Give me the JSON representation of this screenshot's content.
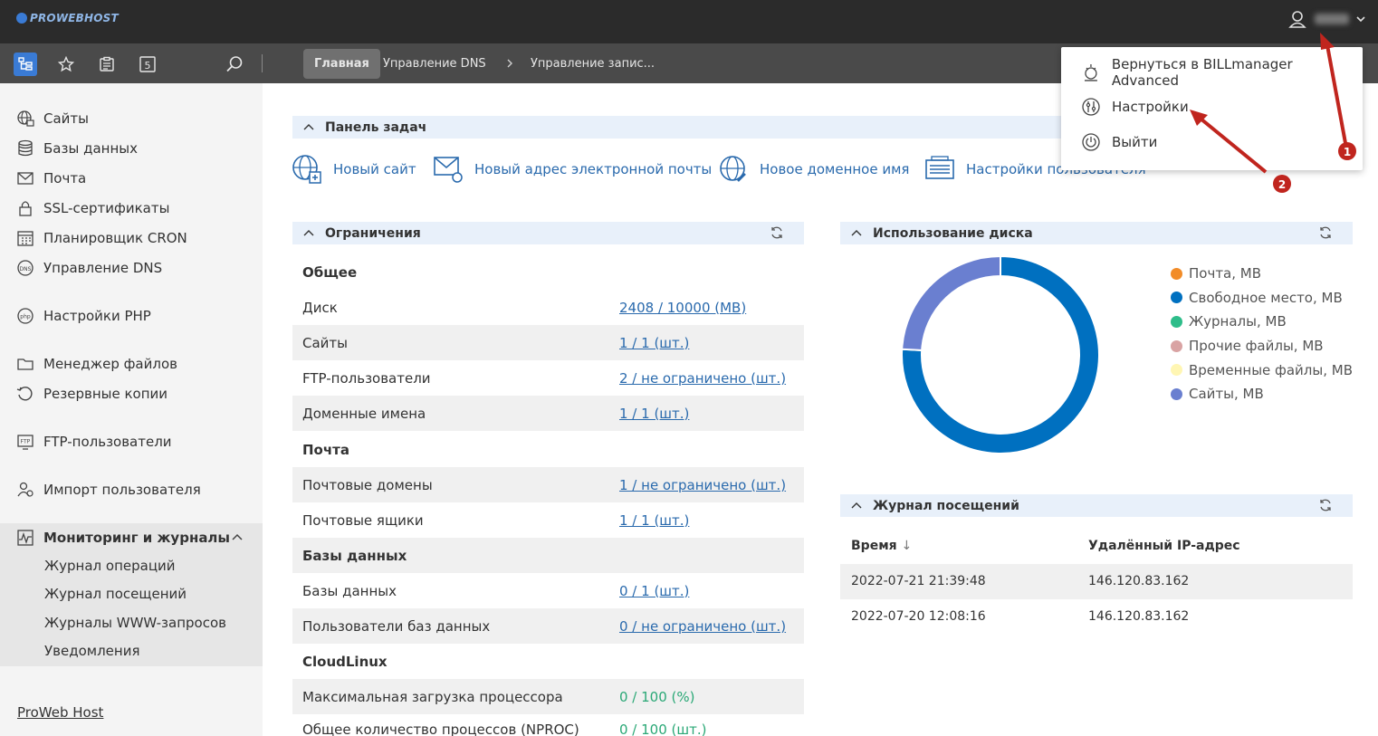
{
  "brand": {
    "logo": "PROWEBHOST"
  },
  "toolbar": {
    "breadcrumbs": [
      {
        "label": "Главная"
      },
      {
        "label": "Управление DNS"
      },
      {
        "label": "Управление запис..."
      }
    ],
    "calendar_badge": "5"
  },
  "sidebar": {
    "items": [
      {
        "label": "Сайты",
        "icon": "globe-icon"
      },
      {
        "label": "Базы данных",
        "icon": "database-icon"
      },
      {
        "label": "Почта",
        "icon": "mail-icon"
      },
      {
        "label": "SSL-сертификаты",
        "icon": "lock-icon"
      },
      {
        "label": "Планировщик CRON",
        "icon": "calendar-icon"
      },
      {
        "label": "Управление DNS",
        "icon": "dns-icon"
      },
      {
        "label": "Настройки PHP",
        "icon": "php-icon"
      },
      {
        "label": "Менеджер файлов",
        "icon": "folder-icon"
      },
      {
        "label": "Резервные копии",
        "icon": "backup-icon"
      },
      {
        "label": "FTP-пользователи",
        "icon": "ftp-icon"
      },
      {
        "label": "Импорт пользователя",
        "icon": "import-user-icon"
      },
      {
        "label": "Мониторинг и журналы",
        "icon": "monitoring-icon"
      }
    ],
    "sub_items": [
      {
        "label": "Журнал операций"
      },
      {
        "label": "Журнал посещений"
      },
      {
        "label": "Журналы WWW-запросов"
      },
      {
        "label": "Уведомления"
      }
    ],
    "footer": "ProWeb Host"
  },
  "tasks": {
    "title": "Панель задач",
    "links": [
      {
        "label": "Новый сайт"
      },
      {
        "label": "Новый адрес электронной почты"
      },
      {
        "label": "Новое доменное имя"
      },
      {
        "label": "Настройки пользователя"
      }
    ]
  },
  "limits": {
    "title": "Ограничения",
    "rows": [
      {
        "label": "Общее",
        "value": ""
      },
      {
        "label": "Диск",
        "value": "2408 / 10000 (MB)"
      },
      {
        "label": "Сайты",
        "value": "1 / 1 (шт.)"
      },
      {
        "label": "FTP-пользователи",
        "value": "2 / не ограничено (шт.)"
      },
      {
        "label": "Доменные имена",
        "value": "1 / 1 (шт.)"
      },
      {
        "label": "Почта",
        "value": ""
      },
      {
        "label": "Почтовые домены",
        "value": "1 / не ограничено (шт.)"
      },
      {
        "label": "Почтовые ящики",
        "value": "1 / 1 (шт.)"
      },
      {
        "label": "Базы данных",
        "value": ""
      },
      {
        "label": "Базы данных",
        "value": "0 / 1 (шт.)"
      },
      {
        "label": "Пользователи баз данных",
        "value": "0 / не ограничено (шт.)"
      },
      {
        "label": "CloudLinux",
        "value": ""
      },
      {
        "label": "Максимальная загрузка процессора",
        "value": "0 / 100 (%)"
      },
      {
        "label": "Общее количество процессов (NPROC)",
        "value": "0 / 100 (шт.)"
      }
    ]
  },
  "disk": {
    "title": "Использование диска"
  },
  "chart_data": {
    "type": "pie",
    "donut": true,
    "categories": [
      "Почта, MB",
      "Свободное место, MB",
      "Журналы, MB",
      "Прочие файлы, MB",
      "Временные файлы, MB",
      "Сайты, MB"
    ],
    "values": [
      0,
      7592,
      0,
      0,
      0,
      2408
    ],
    "colors": [
      "#f28c28",
      "#0070c0",
      "#2ebd8a",
      "#d9a3a3",
      "#fff6b3",
      "#6a7fd0"
    ],
    "legend_position": "right"
  },
  "visits": {
    "title": "Журнал посещений",
    "columns": [
      "Время",
      "Удалённый IP-адрес"
    ],
    "rows": [
      [
        "2022-07-21 21:39:48",
        "146.120.83.162"
      ],
      [
        "2022-07-20 12:08:16",
        "146.120.83.162"
      ]
    ]
  },
  "user_menu": {
    "items": [
      {
        "label": "Вернуться в BILLmanager Advanced"
      },
      {
        "label": "Настройки"
      },
      {
        "label": "Выйти"
      }
    ]
  },
  "annotations": {
    "marker_1": "1",
    "marker_2": "2",
    "arrow_color": "#c0251e"
  }
}
